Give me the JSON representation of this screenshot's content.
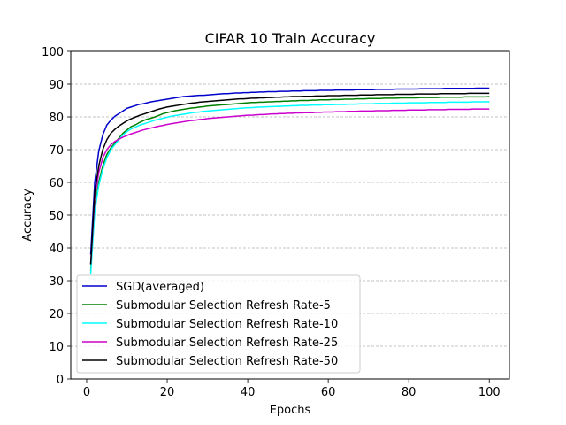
{
  "chart_data": {
    "type": "line",
    "title": "CIFAR 10 Train Accuracy",
    "xlabel": "Epochs",
    "ylabel": "Accuracy",
    "xlim": [
      -3.95,
      105
    ],
    "ylim": [
      0,
      100
    ],
    "xticks": [
      0,
      20,
      40,
      60,
      80,
      100
    ],
    "yticks": [
      0,
      10,
      20,
      30,
      40,
      50,
      60,
      70,
      80,
      90,
      100
    ],
    "grid": "horizontal dashed",
    "legend_position": "lower-left",
    "x": [
      1,
      2,
      3,
      4,
      5,
      6,
      7,
      8,
      9,
      10,
      11,
      12,
      13,
      14,
      15,
      16,
      17,
      18,
      19,
      20,
      21,
      22,
      23,
      24,
      25,
      26,
      27,
      28,
      29,
      30,
      31,
      32,
      33,
      34,
      35,
      36,
      37,
      38,
      39,
      40,
      41,
      42,
      43,
      44,
      45,
      46,
      47,
      48,
      49,
      50,
      51,
      52,
      53,
      54,
      55,
      56,
      57,
      58,
      59,
      60,
      61,
      62,
      63,
      64,
      65,
      66,
      67,
      68,
      69,
      70,
      71,
      72,
      73,
      74,
      75,
      76,
      77,
      78,
      79,
      80,
      81,
      82,
      83,
      84,
      85,
      86,
      87,
      88,
      89,
      90,
      91,
      92,
      93,
      94,
      95,
      96,
      97,
      98,
      99,
      100
    ],
    "series": [
      {
        "name": "SGD(averaged)",
        "color": "#0000cc",
        "values": [
          38.0,
          60.0,
          69.5,
          74.5,
          77.5,
          79.0,
          80.2,
          81.0,
          81.8,
          82.6,
          83.0,
          83.4,
          83.8,
          84.0,
          84.3,
          84.6,
          84.8,
          85.0,
          85.2,
          85.4,
          85.6,
          85.8,
          86.0,
          86.2,
          86.3,
          86.4,
          86.5,
          86.6,
          86.6,
          86.7,
          86.8,
          86.9,
          87.0,
          87.1,
          87.1,
          87.2,
          87.3,
          87.3,
          87.4,
          87.4,
          87.5,
          87.5,
          87.6,
          87.6,
          87.7,
          87.7,
          87.7,
          87.8,
          87.8,
          87.8,
          87.9,
          87.9,
          87.9,
          88.0,
          88.0,
          88.0,
          88.0,
          88.1,
          88.1,
          88.1,
          88.1,
          88.2,
          88.2,
          88.2,
          88.2,
          88.2,
          88.3,
          88.3,
          88.3,
          88.3,
          88.3,
          88.4,
          88.4,
          88.4,
          88.4,
          88.4,
          88.5,
          88.5,
          88.5,
          88.5,
          88.5,
          88.5,
          88.6,
          88.6,
          88.6,
          88.6,
          88.6,
          88.6,
          88.7,
          88.7,
          88.7,
          88.7,
          88.7,
          88.7,
          88.7,
          88.7,
          88.8,
          88.8,
          88.8,
          88.8
        ]
      },
      {
        "name": "Submodular Selection Refresh Rate-5",
        "color": "#008000",
        "values": [
          33.0,
          52.0,
          60.0,
          65.0,
          68.5,
          70.5,
          72.0,
          73.5,
          75.0,
          76.0,
          77.0,
          77.5,
          78.2,
          78.8,
          79.3,
          79.6,
          80.0,
          80.5,
          81.0,
          81.3,
          81.6,
          81.9,
          82.1,
          82.3,
          82.5,
          82.7,
          82.8,
          83.0,
          83.1,
          83.3,
          83.4,
          83.5,
          83.6,
          83.7,
          83.8,
          83.9,
          84.0,
          84.1,
          84.2,
          84.3,
          84.4,
          84.4,
          84.5,
          84.5,
          84.6,
          84.6,
          84.7,
          84.7,
          84.8,
          84.8,
          84.9,
          84.9,
          85.0,
          85.0,
          85.0,
          85.1,
          85.1,
          85.2,
          85.2,
          85.2,
          85.3,
          85.3,
          85.3,
          85.4,
          85.4,
          85.4,
          85.5,
          85.5,
          85.5,
          85.6,
          85.6,
          85.6,
          85.6,
          85.7,
          85.7,
          85.7,
          85.7,
          85.8,
          85.8,
          85.8,
          85.8,
          85.8,
          85.9,
          85.9,
          85.9,
          85.9,
          85.9,
          86.0,
          86.0,
          86.0,
          86.0,
          86.0,
          86.0,
          86.1,
          86.1,
          86.1,
          86.1,
          86.1,
          86.1,
          86.2
        ]
      },
      {
        "name": "Submodular Selection Refresh Rate-10",
        "color": "#00ffff",
        "values": [
          32.0,
          51.0,
          59.0,
          64.0,
          67.5,
          70.0,
          71.5,
          73.0,
          74.5,
          75.5,
          76.3,
          76.8,
          77.4,
          77.8,
          78.2,
          78.6,
          79.0,
          79.3,
          79.6,
          79.9,
          80.2,
          80.4,
          80.6,
          80.8,
          81.0,
          81.2,
          81.4,
          81.5,
          81.7,
          81.8,
          81.9,
          82.0,
          82.1,
          82.2,
          82.3,
          82.4,
          82.5,
          82.6,
          82.7,
          82.8,
          82.8,
          82.9,
          83.0,
          83.0,
          83.1,
          83.1,
          83.2,
          83.2,
          83.3,
          83.3,
          83.4,
          83.4,
          83.5,
          83.5,
          83.5,
          83.6,
          83.6,
          83.6,
          83.7,
          83.7,
          83.7,
          83.8,
          83.8,
          83.8,
          83.9,
          83.9,
          83.9,
          84.0,
          84.0,
          84.0,
          84.0,
          84.1,
          84.1,
          84.1,
          84.1,
          84.2,
          84.2,
          84.2,
          84.2,
          84.3,
          84.3,
          84.3,
          84.3,
          84.3,
          84.4,
          84.4,
          84.4,
          84.4,
          84.4,
          84.5,
          84.5,
          84.5,
          84.5,
          84.5,
          84.5,
          84.6,
          84.6,
          84.6,
          84.6,
          84.6
        ]
      },
      {
        "name": "Submodular Selection Refresh Rate-25",
        "color": "#cc00cc",
        "values": [
          35.0,
          55.0,
          63.0,
          67.5,
          70.0,
          71.5,
          72.5,
          73.2,
          73.8,
          74.3,
          74.8,
          75.2,
          75.6,
          76.0,
          76.3,
          76.6,
          76.9,
          77.2,
          77.4,
          77.7,
          77.9,
          78.1,
          78.3,
          78.5,
          78.7,
          78.9,
          79.0,
          79.2,
          79.3,
          79.5,
          79.6,
          79.7,
          79.8,
          79.9,
          80.0,
          80.1,
          80.2,
          80.3,
          80.4,
          80.5,
          80.5,
          80.6,
          80.7,
          80.7,
          80.8,
          80.9,
          80.9,
          81.0,
          81.0,
          81.1,
          81.1,
          81.2,
          81.2,
          81.3,
          81.3,
          81.3,
          81.4,
          81.4,
          81.5,
          81.5,
          81.5,
          81.6,
          81.6,
          81.6,
          81.7,
          81.7,
          81.7,
          81.8,
          81.8,
          81.8,
          81.8,
          81.9,
          81.9,
          81.9,
          81.9,
          82.0,
          82.0,
          82.0,
          82.0,
          82.1,
          82.1,
          82.1,
          82.1,
          82.1,
          82.2,
          82.2,
          82.2,
          82.2,
          82.2,
          82.3,
          82.3,
          82.3,
          82.3,
          82.3,
          82.3,
          82.4,
          82.4,
          82.4,
          82.4,
          82.4
        ]
      },
      {
        "name": "Submodular Selection Refresh Rate-50",
        "color": "#000000",
        "values": [
          35.0,
          57.0,
          65.0,
          70.0,
          73.0,
          75.0,
          76.2,
          77.2,
          78.0,
          78.8,
          79.4,
          79.9,
          80.4,
          80.8,
          81.2,
          81.6,
          82.0,
          82.4,
          82.7,
          83.0,
          83.2,
          83.4,
          83.6,
          83.8,
          84.0,
          84.2,
          84.3,
          84.5,
          84.6,
          84.7,
          84.8,
          84.9,
          85.0,
          85.1,
          85.2,
          85.3,
          85.4,
          85.5,
          85.5,
          85.6,
          85.7,
          85.7,
          85.8,
          85.8,
          85.9,
          85.9,
          86.0,
          86.0,
          86.1,
          86.1,
          86.2,
          86.2,
          86.2,
          86.3,
          86.3,
          86.3,
          86.4,
          86.4,
          86.4,
          86.5,
          86.5,
          86.5,
          86.5,
          86.6,
          86.6,
          86.6,
          86.6,
          86.7,
          86.7,
          86.7,
          86.7,
          86.8,
          86.8,
          86.8,
          86.8,
          86.8,
          86.9,
          86.9,
          86.9,
          86.9,
          86.9,
          87.0,
          87.0,
          87.0,
          87.0,
          87.0,
          87.0,
          87.1,
          87.1,
          87.1,
          87.1,
          87.1,
          87.1,
          87.1,
          87.2,
          87.2,
          87.2,
          87.2,
          87.2,
          87.2
        ]
      }
    ]
  }
}
